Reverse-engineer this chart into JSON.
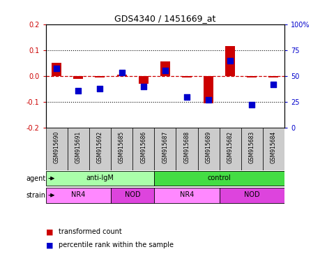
{
  "title": "GDS4340 / 1451669_at",
  "samples": [
    "GSM915690",
    "GSM915691",
    "GSM915692",
    "GSM915685",
    "GSM915686",
    "GSM915687",
    "GSM915688",
    "GSM915689",
    "GSM915682",
    "GSM915683",
    "GSM915684"
  ],
  "red_values": [
    0.05,
    -0.01,
    -0.005,
    0.005,
    -0.03,
    0.055,
    -0.005,
    -0.105,
    0.115,
    -0.005,
    -0.005
  ],
  "blue_values": [
    57,
    36,
    38,
    53,
    40,
    55,
    30,
    27,
    65,
    22,
    42
  ],
  "ylim_left": [
    -0.2,
    0.2
  ],
  "ylim_right": [
    0,
    100
  ],
  "yticks_left": [
    -0.2,
    -0.1,
    0.0,
    0.1,
    0.2
  ],
  "yticks_right": [
    0,
    25,
    50,
    75,
    100
  ],
  "ytick_labels_right": [
    "0",
    "25",
    "50",
    "75",
    "100%"
  ],
  "hline_dotted": [
    0.1,
    -0.1
  ],
  "hline_dashed": 0.0,
  "agent_groups": [
    {
      "label": "anti-IgM",
      "start": 0,
      "end": 5,
      "color": "#AAFFAA"
    },
    {
      "label": "control",
      "start": 5,
      "end": 11,
      "color": "#44DD44"
    }
  ],
  "strain_groups": [
    {
      "label": "NR4",
      "start": 0,
      "end": 3,
      "color": "#FF88FF"
    },
    {
      "label": "NOD",
      "start": 3,
      "end": 5,
      "color": "#DD44DD"
    },
    {
      "label": "NR4",
      "start": 5,
      "end": 8,
      "color": "#FF88FF"
    },
    {
      "label": "NOD",
      "start": 8,
      "end": 11,
      "color": "#DD44DD"
    }
  ],
  "red_color": "#CC0000",
  "blue_color": "#0000CC",
  "bar_width": 0.45,
  "blue_marker_size": 40,
  "legend_red": "transformed count",
  "legend_blue": "percentile rank within the sample",
  "dashed_zero_color": "#CC0000",
  "grid_color": "#000000",
  "background_color": "#FFFFFF",
  "sample_bg_color": "#CCCCCC",
  "agent_label": "agent",
  "strain_label": "strain"
}
